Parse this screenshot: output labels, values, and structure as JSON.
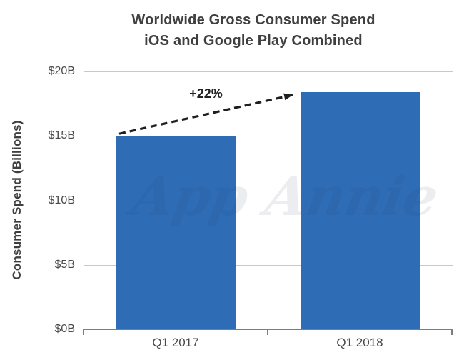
{
  "chart_data": {
    "type": "bar",
    "title": "Worldwide Gross Consumer Spend",
    "subtitle": "iOS and Google Play Combined",
    "categories": [
      "Q1 2017",
      "Q1 2018"
    ],
    "values": [
      15.0,
      18.4
    ],
    "xlabel": "",
    "ylabel": "Consumer Spend (Billions)",
    "ylim": [
      0,
      20
    ],
    "ytick_step": 5,
    "ytick_labels": [
      "$0B",
      "$5B",
      "$10B",
      "$15B",
      "$20B"
    ],
    "grid": true,
    "legend": false,
    "annotation": {
      "label": "+22%",
      "type": "dashed-arrow",
      "from_category": "Q1 2017",
      "to_category": "Q1 2018"
    },
    "watermark": "App Annie",
    "colors": {
      "bar": "#2e6cb6",
      "gridline": "#c9c9c9",
      "axis": "#7d7d7d",
      "title_text": "#3f3f3f",
      "label_text": "#4a4a4a",
      "arrow": "#1e1e1e",
      "background": "#ffffff"
    }
  }
}
